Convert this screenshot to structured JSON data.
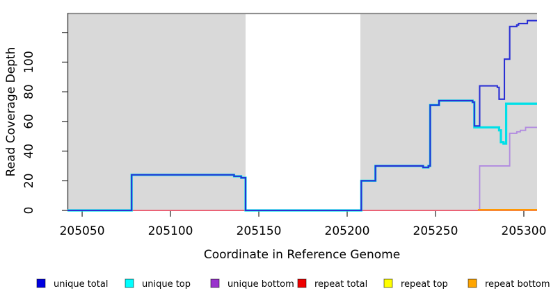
{
  "chart_data": {
    "type": "line",
    "step": true,
    "title": "",
    "xlabel": "Coordinate in Reference Genome",
    "ylabel": "Read Coverage Depth",
    "xlim": [
      205041.7,
      205307.5
    ],
    "ylim": [
      0,
      133
    ],
    "x_ticks": [
      205050,
      205100,
      205150,
      205200,
      205250,
      205300
    ],
    "x_tick_labels": [
      "205050",
      "205100",
      "205150",
      "205200",
      "205250",
      "205300"
    ],
    "y_ticks": [
      0,
      20,
      40,
      60,
      80,
      100,
      120
    ],
    "y_tick_labels": [
      "0",
      "20",
      "40",
      "60",
      "80",
      "100",
      ""
    ],
    "grid": false,
    "plot_bg": "#d9d9d9",
    "top_border_color": "#8a8a8a",
    "axis_color": "#333333",
    "gap_region": {
      "from": 205142.5,
      "to": 205207.5,
      "color": "#ffffff"
    },
    "series": [
      {
        "name": "repeat top",
        "color": "#f5e400",
        "width": 1.6,
        "steps": [
          [
            205041.7,
            0
          ]
        ],
        "end": 205307.5
      },
      {
        "name": "unique bottom",
        "color": "#b18ae0",
        "width": 1.8,
        "steps": [
          [
            205041.7,
            0
          ],
          [
            205275,
            30
          ],
          [
            205292,
            52
          ],
          [
            205296,
            53
          ],
          [
            205298,
            54
          ],
          [
            205301,
            56
          ]
        ],
        "end": 205307.5
      },
      {
        "name": "repeat total",
        "color": "#ef5a6a",
        "width": 1.7,
        "steps": [
          [
            205041.7,
            0
          ]
        ],
        "end": 205307.5
      },
      {
        "name": "repeat bottom",
        "color": "#ff9802",
        "width": 2.2,
        "steps": [
          [
            205274,
            0.4
          ]
        ],
        "end": 205307.5
      },
      {
        "name": "unique top",
        "color": "#00e0e8",
        "width": 3.2,
        "steps": [
          [
            205041.7,
            0
          ],
          [
            205078,
            24
          ],
          [
            205136,
            23
          ],
          [
            205140,
            22
          ],
          [
            205142.5,
            0
          ],
          [
            205208,
            20
          ],
          [
            205216,
            30
          ],
          [
            205243,
            29
          ],
          [
            205246,
            30
          ],
          [
            205247,
            71
          ],
          [
            205252,
            74
          ],
          [
            205271,
            73
          ],
          [
            205272,
            56
          ],
          [
            205286,
            54
          ],
          [
            205287,
            46
          ],
          [
            205288.5,
            45
          ],
          [
            205290,
            72
          ]
        ],
        "end": 205307.5
      },
      {
        "name": "unique total",
        "color": "#2a2fd4",
        "width": 2.1,
        "steps": [
          [
            205041.7,
            0
          ],
          [
            205078,
            24
          ],
          [
            205136,
            23
          ],
          [
            205140,
            22
          ],
          [
            205142.5,
            0
          ],
          [
            205208,
            20
          ],
          [
            205216,
            30
          ],
          [
            205243,
            29
          ],
          [
            205246,
            30
          ],
          [
            205247,
            71
          ],
          [
            205252,
            74
          ],
          [
            205271,
            73
          ],
          [
            205272,
            57
          ],
          [
            205275,
            84
          ],
          [
            205285,
            83
          ],
          [
            205286,
            75
          ],
          [
            205289,
            102
          ],
          [
            205292,
            124
          ],
          [
            205296,
            125
          ],
          [
            205297,
            126
          ],
          [
            205302,
            128
          ]
        ],
        "end": 205307.5
      }
    ],
    "legend": [
      {
        "label": "unique total",
        "color": "#0000e1"
      },
      {
        "label": "unique top",
        "color": "#00ffff"
      },
      {
        "label": "unique bottom",
        "color": "#9932cc"
      },
      {
        "label": "repeat total",
        "color": "#ee0000"
      },
      {
        "label": "repeat top",
        "color": "#ffff00"
      },
      {
        "label": "repeat bottom",
        "color": "#ffa500"
      }
    ]
  }
}
